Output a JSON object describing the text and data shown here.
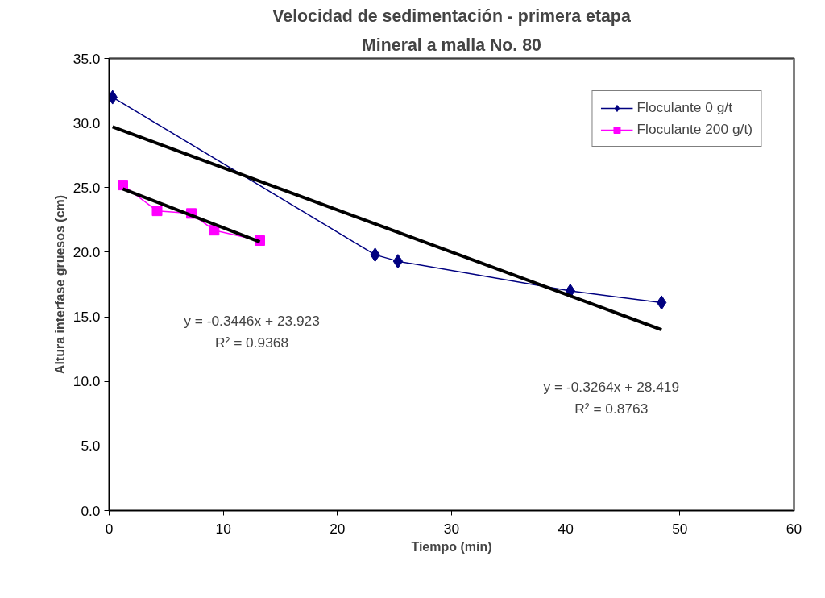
{
  "chart_data": {
    "type": "line",
    "title": "Velocidad de sedimentación - primera etapa",
    "subtitle": "Mineral a malla No. 80",
    "xlabel": "Tiempo (min)",
    "ylabel": "Altura interfase gruesos (cm)",
    "xlim": [
      0,
      60
    ],
    "xticks": [
      0,
      10,
      20,
      30,
      40,
      50,
      60
    ],
    "ylim": [
      0,
      35
    ],
    "yticks": [
      {
        "value": 0,
        "label": "0.0"
      },
      {
        "value": 5,
        "label": "5.0"
      },
      {
        "value": 10,
        "label": "10.0"
      },
      {
        "value": 15,
        "label": "15.0"
      },
      {
        "value": 20,
        "label": "20.0"
      },
      {
        "value": 25,
        "label": "25.0"
      },
      {
        "value": 30,
        "label": "30.0"
      },
      {
        "value": 35,
        "label": "35.0"
      }
    ],
    "grid": false,
    "legend": "top right",
    "series": [
      {
        "name": "Floculante 0 g/t",
        "color": "#000080",
        "marker": "diamond",
        "x": [
          0.3,
          23.3,
          25.3,
          40.4,
          48.4
        ],
        "values": [
          32.0,
          19.8,
          19.3,
          17.0,
          16.1
        ]
      },
      {
        "name": "Floculante 200 g/t)",
        "color": "#ff00ff",
        "marker": "square",
        "x": [
          1.2,
          4.2,
          7.2,
          9.2,
          13.2
        ],
        "values": [
          25.2,
          23.2,
          23.0,
          21.7,
          20.9
        ]
      },
      {
        "type": "line",
        "color": "#000000",
        "x": [
          0.3,
          48.4
        ],
        "values": [
          29.7,
          14.0
        ]
      },
      {
        "type": "line",
        "color": "#000000",
        "x": [
          1.2,
          13.2
        ],
        "values": [
          24.9,
          20.8
        ]
      }
    ],
    "annotations": [
      "y = -0.3446x + 23.923",
      "R² = 0.9368",
      "y = -0.3264x + 28.419",
      "R² = 0.8763"
    ]
  }
}
